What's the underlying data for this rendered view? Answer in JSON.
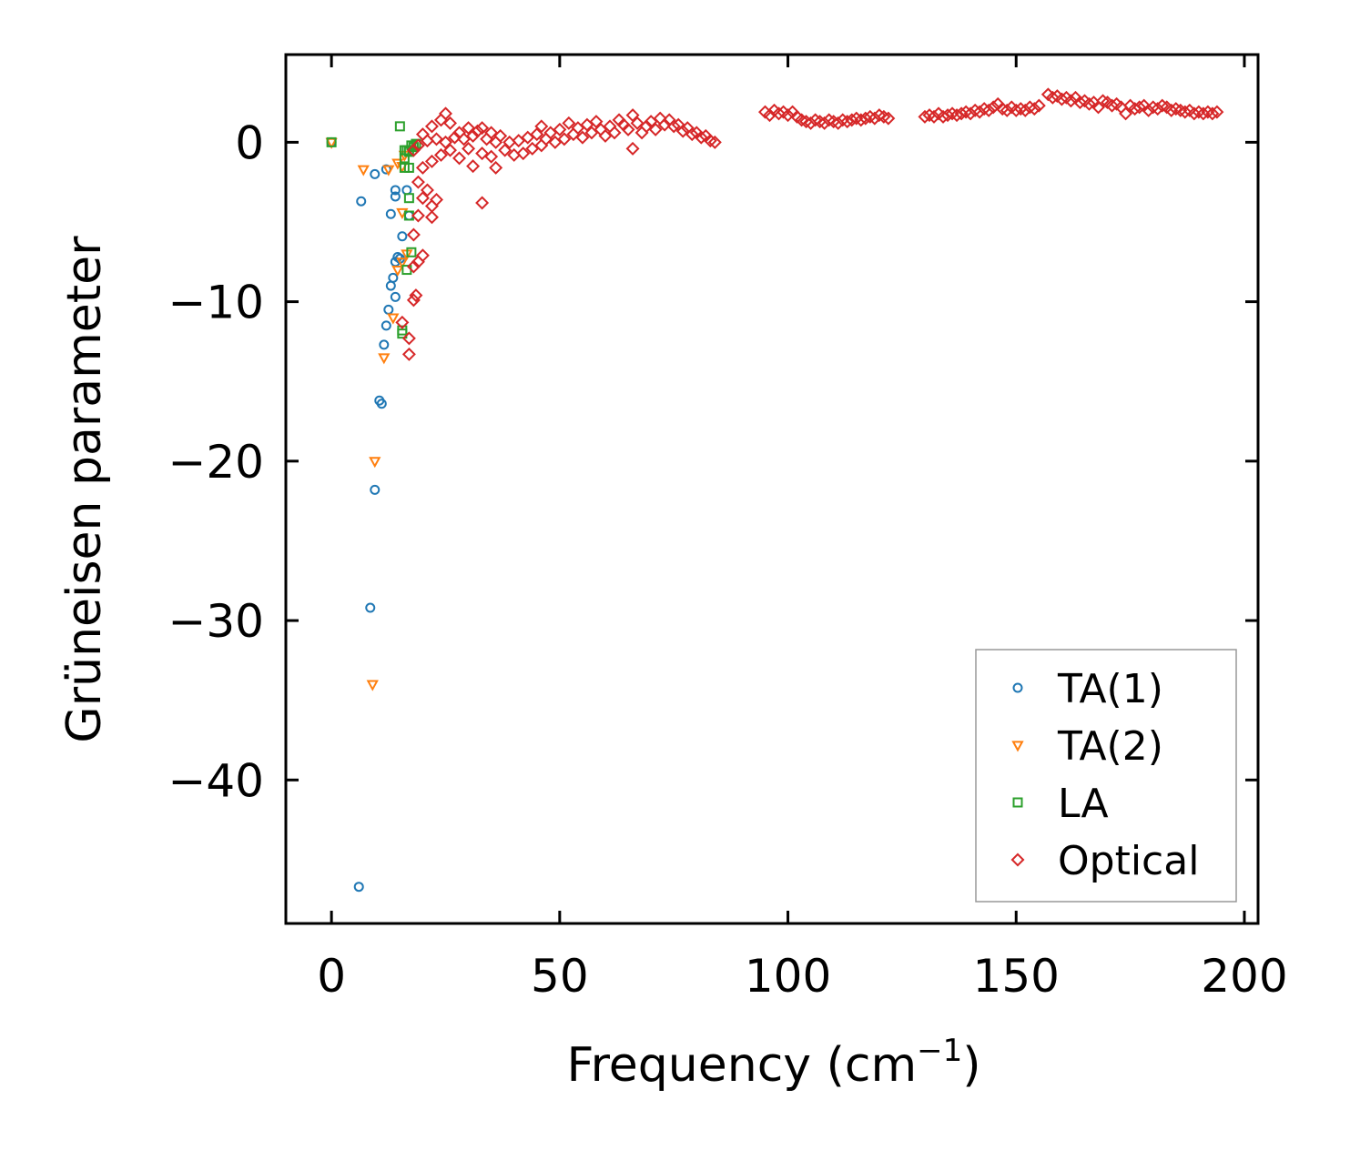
{
  "chart_data": {
    "type": "scatter",
    "title": "",
    "xlabel": "Frequency (cm",
    "xlabel_sup": "−1",
    "xlabel_suffix": ")",
    "ylabel": "Grüneisen parameter",
    "xlim": [
      -10,
      203
    ],
    "ylim": [
      -49,
      5.5
    ],
    "x_ticks": [
      0,
      50,
      100,
      150,
      200
    ],
    "x_tick_labels": [
      "0",
      "50",
      "100",
      "150",
      "200"
    ],
    "y_ticks": [
      0,
      -10,
      -20,
      -30,
      -40
    ],
    "y_tick_labels": [
      "0",
      "−10",
      "−20",
      "−30",
      "−40"
    ],
    "grid": false,
    "legend_position": "bottom-right",
    "series": [
      {
        "name": "TA(1)",
        "marker": "circle",
        "color": "#1f77b4",
        "points": [
          [
            0,
            0
          ],
          [
            6.5,
            -3.7
          ],
          [
            9.5,
            -2
          ],
          [
            12,
            -1.7
          ],
          [
            13,
            -4.5
          ],
          [
            14,
            -3
          ],
          [
            14,
            -3.4
          ],
          [
            15.5,
            -5.9
          ],
          [
            16.5,
            -3
          ],
          [
            17,
            -4.6
          ],
          [
            14.5,
            -7.2
          ],
          [
            14,
            -7.5
          ],
          [
            15,
            -7.3
          ],
          [
            13.5,
            -8.5
          ],
          [
            13,
            -9
          ],
          [
            14,
            -9.7
          ],
          [
            12.5,
            -10.5
          ],
          [
            12,
            -11.5
          ],
          [
            11.5,
            -12.7
          ],
          [
            10.5,
            -16.2
          ],
          [
            11,
            -16.4
          ],
          [
            9.5,
            -21.8
          ],
          [
            8.5,
            -29.2
          ],
          [
            6,
            -46.7
          ]
        ]
      },
      {
        "name": "TA(2)",
        "marker": "triangle-down",
        "color": "#ff7f0e",
        "points": [
          [
            0,
            0
          ],
          [
            7,
            -1.7
          ],
          [
            12.5,
            -1.7
          ],
          [
            14.5,
            -1.3
          ],
          [
            15.5,
            -1.5
          ],
          [
            16,
            -0.8
          ],
          [
            15.5,
            -4.4
          ],
          [
            15.5,
            -7.5
          ],
          [
            14.5,
            -8
          ],
          [
            16.5,
            -7
          ],
          [
            13.5,
            -11
          ],
          [
            11.5,
            -13.5
          ],
          [
            9.5,
            -20
          ],
          [
            9,
            -34
          ]
        ]
      },
      {
        "name": "LA",
        "marker": "square",
        "color": "#2ca02c",
        "points": [
          [
            0,
            0
          ],
          [
            15,
            1
          ],
          [
            16,
            -0.5
          ],
          [
            16.5,
            -0.5
          ],
          [
            17,
            -0.6
          ],
          [
            17.5,
            -0.2
          ],
          [
            18,
            -0.3
          ],
          [
            18.5,
            -0.1
          ],
          [
            16,
            -1
          ],
          [
            16,
            -1.6
          ],
          [
            17,
            -1.6
          ],
          [
            17,
            -3.5
          ],
          [
            17,
            -4.6
          ],
          [
            17.5,
            -6.9
          ],
          [
            16.5,
            -8
          ],
          [
            15.5,
            -12
          ],
          [
            15.5,
            -11.8
          ]
        ]
      },
      {
        "name": "Optical",
        "marker": "diamond",
        "color": "#d62728",
        "points": [
          [
            18,
            -0.5
          ],
          [
            19,
            -0.2
          ],
          [
            20,
            0.5
          ],
          [
            20,
            -1.6
          ],
          [
            21,
            0.1
          ],
          [
            22,
            1
          ],
          [
            22,
            -1.2
          ],
          [
            23,
            0.2
          ],
          [
            24,
            1.4
          ],
          [
            24,
            -0.8
          ],
          [
            25,
            1.8
          ],
          [
            25,
            0
          ],
          [
            26,
            -0.5
          ],
          [
            26,
            1.2
          ],
          [
            27,
            0.3
          ],
          [
            28,
            -1
          ],
          [
            28,
            0.6
          ],
          [
            29,
            0.2
          ],
          [
            30,
            -0.4
          ],
          [
            30,
            0.9
          ],
          [
            31,
            -1.5
          ],
          [
            31,
            0.4
          ],
          [
            32,
            0.7
          ],
          [
            33,
            -0.7
          ],
          [
            33,
            0.9
          ],
          [
            34,
            0.2
          ],
          [
            35,
            -0.9
          ],
          [
            35,
            0.6
          ],
          [
            36,
            -1.6
          ],
          [
            36,
            0
          ],
          [
            37,
            0.4
          ],
          [
            38,
            -0.5
          ],
          [
            39,
            0
          ],
          [
            40,
            -0.8
          ],
          [
            41,
            0.1
          ],
          [
            42,
            -0.7
          ],
          [
            43,
            0.3
          ],
          [
            44,
            -0.4
          ],
          [
            45,
            0.5
          ],
          [
            46,
            -0.2
          ],
          [
            46,
            1
          ],
          [
            47,
            0.2
          ],
          [
            48,
            0.6
          ],
          [
            49,
            0
          ],
          [
            50,
            0.8
          ],
          [
            51,
            0.2
          ],
          [
            52,
            1.2
          ],
          [
            53,
            0.5
          ],
          [
            54,
            0.9
          ],
          [
            55,
            0.3
          ],
          [
            56,
            1.1
          ],
          [
            57,
            0.6
          ],
          [
            58,
            1.3
          ],
          [
            59,
            0.8
          ],
          [
            60,
            0.4
          ],
          [
            61,
            1
          ],
          [
            62,
            0.6
          ],
          [
            63,
            1.4
          ],
          [
            64,
            1.1
          ],
          [
            65,
            0.8
          ],
          [
            66,
            1.7
          ],
          [
            66,
            -0.4
          ],
          [
            67,
            1.2
          ],
          [
            68,
            0.6
          ],
          [
            69,
            1
          ],
          [
            70,
            1.3
          ],
          [
            71,
            0.8
          ],
          [
            72,
            1.5
          ],
          [
            73,
            1.1
          ],
          [
            74,
            1.4
          ],
          [
            75,
            1
          ],
          [
            76,
            1.1
          ],
          [
            77,
            0.7
          ],
          [
            78,
            0.9
          ],
          [
            79,
            0.5
          ],
          [
            80,
            0.6
          ],
          [
            81,
            0.3
          ],
          [
            82,
            0.4
          ],
          [
            83,
            0.1
          ],
          [
            84,
            0
          ],
          [
            19,
            -2.5
          ],
          [
            20,
            -3.5
          ],
          [
            21,
            -3
          ],
          [
            22,
            -4
          ],
          [
            23,
            -3.6
          ],
          [
            22,
            -4.7
          ],
          [
            19,
            -4.6
          ],
          [
            18,
            -5.8
          ],
          [
            20,
            -7.1
          ],
          [
            18,
            -7.8
          ],
          [
            19,
            -7.5
          ],
          [
            18,
            -9.9
          ],
          [
            18.5,
            -9.6
          ],
          [
            15.5,
            -11.3
          ],
          [
            17,
            -12.3
          ],
          [
            17,
            -13.3
          ],
          [
            33,
            -3.8
          ],
          [
            95,
            1.9
          ],
          [
            96,
            1.7
          ],
          [
            97,
            2
          ],
          [
            98,
            1.8
          ],
          [
            99,
            1.9
          ],
          [
            100,
            1.7
          ],
          [
            101,
            1.9
          ],
          [
            102,
            1.6
          ],
          [
            103,
            1.4
          ],
          [
            104,
            1.3
          ],
          [
            105,
            1.2
          ],
          [
            106,
            1.4
          ],
          [
            107,
            1.3
          ],
          [
            108,
            1.2
          ],
          [
            109,
            1.4
          ],
          [
            110,
            1.3
          ],
          [
            111,
            1.2
          ],
          [
            112,
            1.4
          ],
          [
            113,
            1.3
          ],
          [
            114,
            1.4
          ],
          [
            115,
            1.5
          ],
          [
            116,
            1.4
          ],
          [
            117,
            1.5
          ],
          [
            118,
            1.6
          ],
          [
            119,
            1.5
          ],
          [
            120,
            1.7
          ],
          [
            121,
            1.6
          ],
          [
            122,
            1.5
          ],
          [
            130,
            1.6
          ],
          [
            131,
            1.7
          ],
          [
            132,
            1.6
          ],
          [
            133,
            1.8
          ],
          [
            134,
            1.6
          ],
          [
            135,
            1.7
          ],
          [
            136,
            1.8
          ],
          [
            137,
            1.7
          ],
          [
            138,
            1.8
          ],
          [
            139,
            1.9
          ],
          [
            140,
            1.8
          ],
          [
            141,
            2
          ],
          [
            142,
            1.9
          ],
          [
            143,
            2.1
          ],
          [
            144,
            2
          ],
          [
            145,
            2.2
          ],
          [
            146,
            2.4
          ],
          [
            147,
            2.1
          ],
          [
            148,
            2
          ],
          [
            149,
            2.2
          ],
          [
            150,
            2
          ],
          [
            151,
            2.1
          ],
          [
            152,
            2
          ],
          [
            153,
            2.2
          ],
          [
            154,
            2.1
          ],
          [
            155,
            2.3
          ],
          [
            157,
            3
          ],
          [
            158,
            2.8
          ],
          [
            159,
            2.9
          ],
          [
            160,
            2.7
          ],
          [
            161,
            2.8
          ],
          [
            162,
            2.6
          ],
          [
            163,
            2.8
          ],
          [
            164,
            2.5
          ],
          [
            165,
            2.6
          ],
          [
            166,
            2.4
          ],
          [
            167,
            2.5
          ],
          [
            168,
            2.2
          ],
          [
            169,
            2.6
          ],
          [
            170,
            2.5
          ],
          [
            171,
            2.3
          ],
          [
            172,
            2.4
          ],
          [
            173,
            2.2
          ],
          [
            174,
            1.8
          ],
          [
            175,
            2.3
          ],
          [
            176,
            2.1
          ],
          [
            177,
            2.2
          ],
          [
            178,
            2.3
          ],
          [
            179,
            2
          ],
          [
            180,
            2.2
          ],
          [
            181,
            2.1
          ],
          [
            182,
            2.3
          ],
          [
            183,
            2.2
          ],
          [
            184,
            2
          ],
          [
            185,
            2.1
          ],
          [
            186,
            2
          ],
          [
            187,
            1.9
          ],
          [
            188,
            2
          ],
          [
            189,
            1.8
          ],
          [
            190,
            1.9
          ],
          [
            191,
            1.8
          ],
          [
            192,
            1.9
          ],
          [
            193,
            1.8
          ],
          [
            194,
            1.9
          ]
        ]
      }
    ]
  }
}
